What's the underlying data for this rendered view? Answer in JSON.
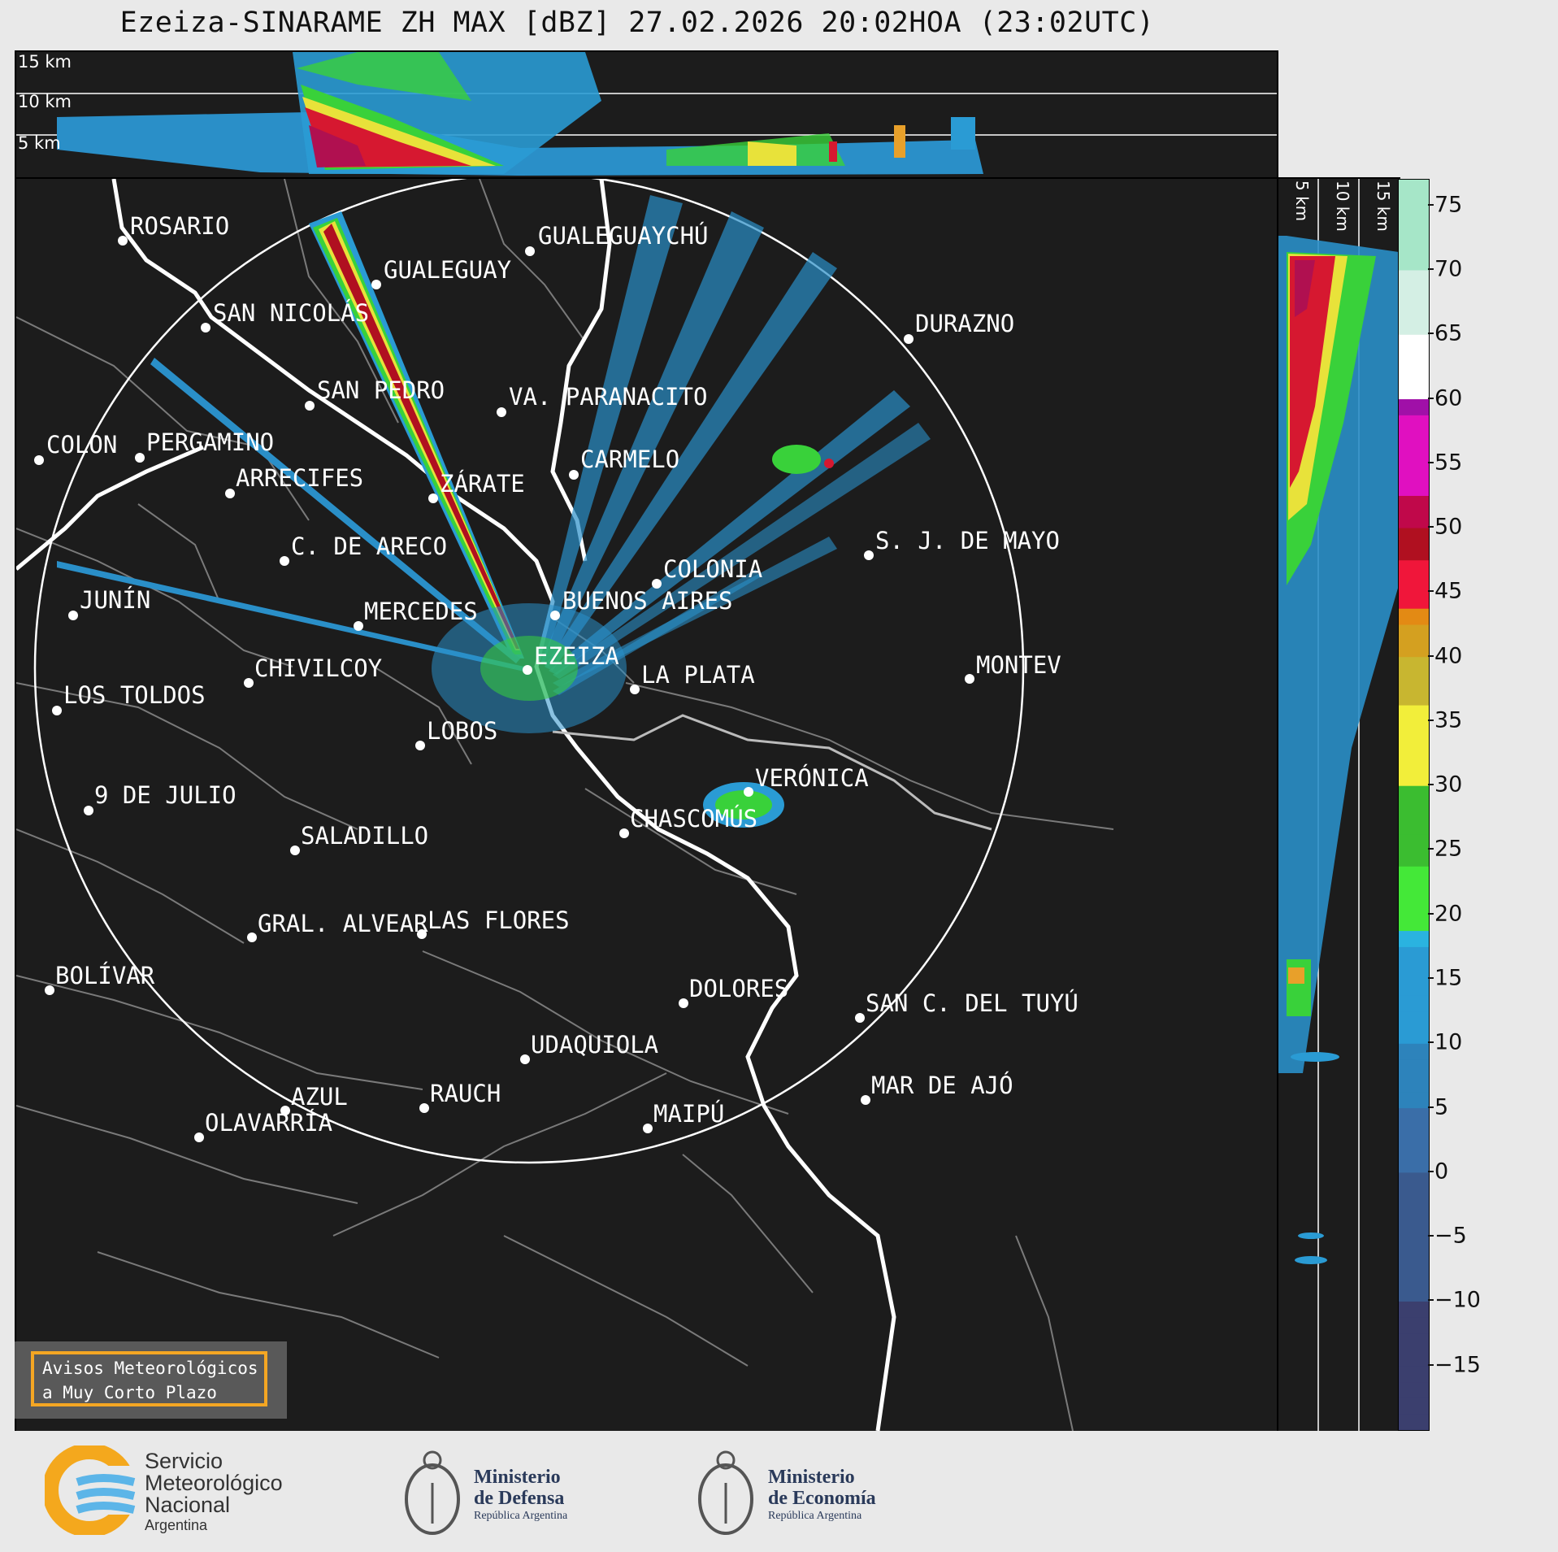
{
  "title": "Ezeiza-SINARAME ZH MAX [dBZ] 27.02.2026 20:02HOA (23:02UTC)",
  "top_panel": {
    "altitude_labels": [
      "15 km",
      "10 km",
      "5 km"
    ]
  },
  "side_panel": {
    "altitude_labels": [
      "5 km",
      "10 km",
      "15 km"
    ]
  },
  "cities": [
    {
      "id": "rosario",
      "name": "ROSARIO"
    },
    {
      "id": "gualeguaychu",
      "name": "GUALEGUAYCHÚ"
    },
    {
      "id": "gualeguay",
      "name": "GUALEGUAY"
    },
    {
      "id": "san-nicolas",
      "name": "SAN NICOLÁS"
    },
    {
      "id": "durazno",
      "name": "DURAZNO"
    },
    {
      "id": "san-pedro",
      "name": "SAN PEDRO"
    },
    {
      "id": "villa-paranacito",
      "name": "VA. PARANACITO"
    },
    {
      "id": "colon",
      "name": "COLON"
    },
    {
      "id": "pergamino",
      "name": "PERGAMINO"
    },
    {
      "id": "carmelo",
      "name": "CARMELO"
    },
    {
      "id": "arrecifes",
      "name": "ARRECIFES"
    },
    {
      "id": "zarate",
      "name": "ZÁRATE"
    },
    {
      "id": "san-jose-de-mayo",
      "name": "S. J. DE MAYO"
    },
    {
      "id": "carmen-de-areco",
      "name": "C. DE ARECO"
    },
    {
      "id": "colonia",
      "name": "COLONIA"
    },
    {
      "id": "junin",
      "name": "JUNÍN"
    },
    {
      "id": "buenos-aires",
      "name": "BUENOS AIRES"
    },
    {
      "id": "mercedes",
      "name": "MERCEDES"
    },
    {
      "id": "ezeiza",
      "name": "EZEIZA"
    },
    {
      "id": "montevideo",
      "name": "MONTEV"
    },
    {
      "id": "chivilcoy",
      "name": "CHIVILCOY"
    },
    {
      "id": "la-plata",
      "name": "LA PLATA"
    },
    {
      "id": "los-toldos",
      "name": "LOS TOLDOS"
    },
    {
      "id": "lobos",
      "name": "LOBOS"
    },
    {
      "id": "veronica",
      "name": "VERÓNICA"
    },
    {
      "id": "9-de-julio",
      "name": "9 DE JULIO"
    },
    {
      "id": "chascomus",
      "name": "CHASCOMÚS"
    },
    {
      "id": "saladillo",
      "name": "SALADILLO"
    },
    {
      "id": "gral-alvear",
      "name": "GRAL. ALVEAR"
    },
    {
      "id": "las-flores",
      "name": "LAS FLORES"
    },
    {
      "id": "bolivar",
      "name": "BOLÍVAR"
    },
    {
      "id": "dolores",
      "name": "DOLORES"
    },
    {
      "id": "san-clemente",
      "name": "SAN C. DEL TUYÚ"
    },
    {
      "id": "udaquiola",
      "name": "UDAQUIOLA"
    },
    {
      "id": "mar-de-ajo",
      "name": "MAR DE AJÓ"
    },
    {
      "id": "azul",
      "name": "AZUL"
    },
    {
      "id": "rauch",
      "name": "RAUCH"
    },
    {
      "id": "olavarria",
      "name": "OLAVARRÍA"
    },
    {
      "id": "maipu",
      "name": "MAIPÚ"
    }
  ],
  "colorbar": {
    "unit": "dBZ",
    "min": -20,
    "max": 77,
    "ticks": [
      "75",
      "70",
      "65",
      "60",
      "55",
      "50",
      "45",
      "40",
      "35",
      "30",
      "25",
      "20",
      "15",
      "10",
      "5",
      "0",
      "−5",
      "−10",
      "−15"
    ],
    "colors": {
      "weak": "#3a3f6e",
      "light": "#2a9bd4",
      "moderate": "#39d13a",
      "strong": "#e8e23a",
      "heavy": "#d61830",
      "extreme": "#b010b0",
      "max": "#88ddbb"
    }
  },
  "avisos": {
    "line1": "Avisos Meteorológicos",
    "line2": "a Muy Corto Plazo"
  },
  "logos": {
    "smn": {
      "line1": "Servicio",
      "line2": "Meteorológico",
      "line3": "Nacional",
      "line4": "Argentina"
    },
    "defensa": {
      "line1": "Ministerio",
      "line2": "de Defensa",
      "line3": "República Argentina"
    },
    "economia": {
      "line1": "Ministerio",
      "line2": "de Economía",
      "line3": "República Argentina"
    }
  }
}
